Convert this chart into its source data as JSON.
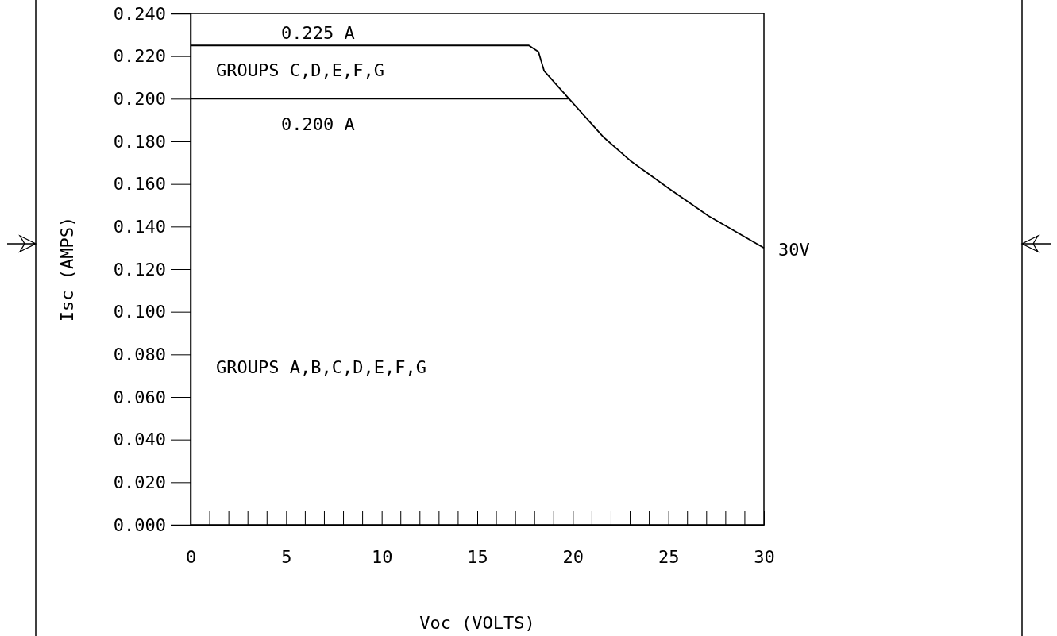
{
  "chart_data": {
    "type": "line",
    "xlabel": "Voc (VOLTS)",
    "ylabel": "Isc (AMPS)",
    "xlim": [
      0,
      30
    ],
    "ylim": [
      0,
      0.24
    ],
    "xticks": [
      0,
      5,
      10,
      15,
      20,
      25,
      30
    ],
    "yticks": [
      {
        "value": 0,
        "label": "0.000"
      },
      {
        "value": 0.02,
        "label": "0.020"
      },
      {
        "value": 0.04,
        "label": "0.040"
      },
      {
        "value": 0.06,
        "label": "0.060"
      },
      {
        "value": 0.08,
        "label": "0.080"
      },
      {
        "value": 0.1,
        "label": "0.100"
      },
      {
        "value": 0.12,
        "label": "0.120"
      },
      {
        "value": 0.14,
        "label": "0.140"
      },
      {
        "value": 0.16,
        "label": "0.160"
      },
      {
        "value": 0.18,
        "label": "0.180"
      },
      {
        "value": 0.2,
        "label": "0.200"
      },
      {
        "value": 0.22,
        "label": "0.220"
      },
      {
        "value": 0.24,
        "label": "0.240"
      }
    ],
    "grid": false,
    "marker": "none",
    "line_style": "solid",
    "series": [
      {
        "color": "#000000",
        "x": [
          0,
          17.7,
          18.2,
          18.5,
          19.8,
          21.6,
          23,
          25,
          27.1,
          30
        ],
        "values": [
          0.225,
          0.225,
          0.222,
          0.213,
          0.2,
          0.182,
          0.171,
          0.158,
          0.145,
          0.13
        ]
      },
      {
        "color": "#000000",
        "x": [
          0,
          19.8
        ],
        "values": [
          0.2,
          0.2
        ]
      }
    ],
    "annotations": [
      "0.225 A",
      "GROUPS C,D,E,F,G",
      "0.200 A",
      "GROUPS A,B,C,D,E,F,G",
      {
        "text": "30V",
        "x": 30,
        "y": 0.13
      }
    ]
  }
}
